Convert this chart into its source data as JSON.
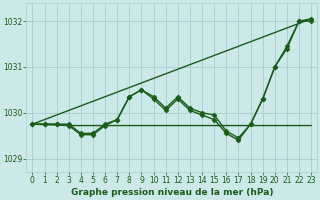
{
  "background_color": "#cce8e8",
  "grid_color": "#aacccc",
  "line_color": "#1a5c1a",
  "title": "Graphe pression niveau de la mer (hPa)",
  "xlim": [
    -0.5,
    23.5
  ],
  "ylim": [
    1028.7,
    1032.4
  ],
  "yticks": [
    1029,
    1030,
    1031,
    1032
  ],
  "xticks": [
    0,
    1,
    2,
    3,
    4,
    5,
    6,
    7,
    8,
    9,
    10,
    11,
    12,
    13,
    14,
    15,
    16,
    17,
    18,
    19,
    20,
    21,
    22,
    23
  ],
  "series": [
    {
      "x": [
        0,
        1,
        2,
        3,
        4,
        5,
        6,
        7,
        8,
        9,
        10,
        11,
        12,
        13,
        14,
        15,
        16,
        17,
        18,
        19,
        20,
        21,
        22,
        23
      ],
      "y": [
        1029.75,
        1029.75,
        1029.75,
        1029.75,
        1029.55,
        1029.55,
        1029.75,
        1029.85,
        1030.35,
        1030.5,
        1030.35,
        1030.1,
        1030.35,
        1030.1,
        1030.0,
        1029.95,
        1029.6,
        1029.45,
        1029.75,
        1030.3,
        1031.0,
        1031.45,
        1032.0,
        1032.05
      ],
      "marker": "D",
      "markersize": 2.5,
      "linewidth": 1.0
    },
    {
      "x": [
        0,
        1,
        2,
        3,
        4,
        5,
        6,
        7,
        8,
        9,
        10,
        11,
        12,
        13,
        14,
        15,
        16,
        17,
        18,
        19,
        20,
        21,
        22,
        23
      ],
      "y": [
        1029.75,
        1029.75,
        1029.75,
        1029.72,
        1029.52,
        1029.52,
        1029.72,
        1029.85,
        1030.35,
        1030.5,
        1030.3,
        1030.05,
        1030.3,
        1030.05,
        1029.95,
        1029.85,
        1029.55,
        1029.4,
        1029.75,
        1030.3,
        1031.0,
        1031.4,
        1032.0,
        1032.0
      ],
      "marker": "D",
      "markersize": 2.5,
      "linewidth": 1.0
    },
    {
      "x": [
        0,
        3,
        7,
        10,
        14,
        19,
        23
      ],
      "y": [
        1029.75,
        1029.72,
        1029.72,
        1029.72,
        1029.72,
        1029.72,
        1029.72
      ],
      "marker": null,
      "markersize": 0,
      "linewidth": 1.0
    },
    {
      "x": [
        0,
        23
      ],
      "y": [
        1029.75,
        1032.05
      ],
      "marker": null,
      "markersize": 0,
      "linewidth": 1.0
    }
  ]
}
